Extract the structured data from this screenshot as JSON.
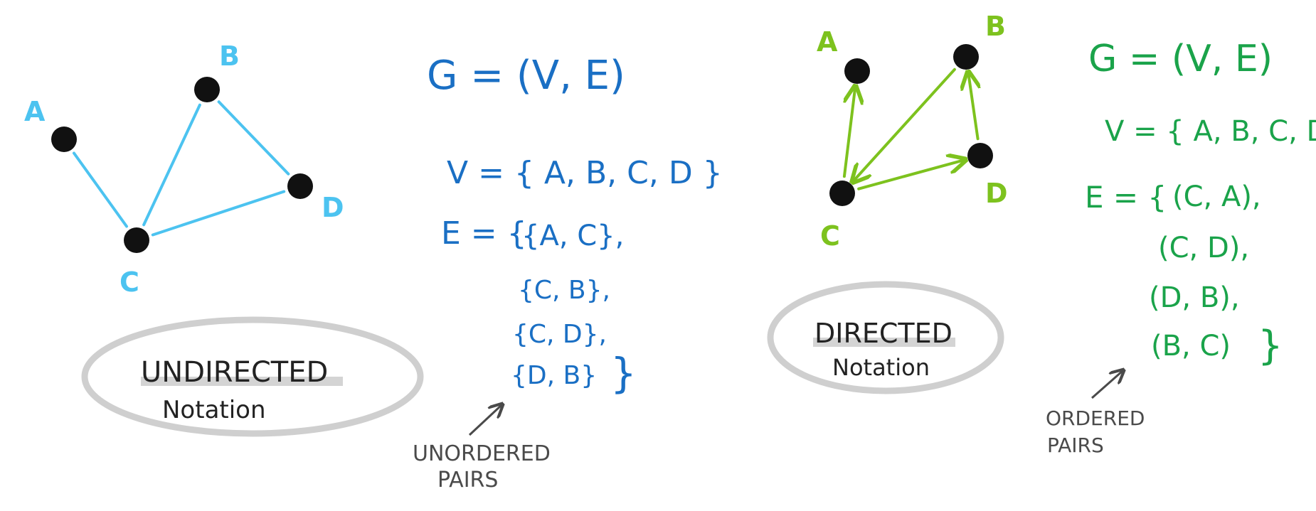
{
  "colors": {
    "undirected_edge": "#4cc3f0",
    "directed_edge": "#7dc21e",
    "undirected_math": "#1a6fc4",
    "directed_math": "#1aa34a",
    "node": "#111111",
    "ellipse": "#cfcfcf",
    "note": "#4a4a4a"
  },
  "undirected": {
    "nodes": [
      {
        "id": "A",
        "label": "A"
      },
      {
        "id": "B",
        "label": "B"
      },
      {
        "id": "C",
        "label": "C"
      },
      {
        "id": "D",
        "label": "D"
      }
    ],
    "edges": [
      [
        "A",
        "C"
      ],
      [
        "C",
        "B"
      ],
      [
        "B",
        "D"
      ],
      [
        "C",
        "D"
      ]
    ],
    "title_line1": "UNDIRECTED",
    "title_line2": "Notation",
    "graph_def": "G = (V, E)",
    "v_def": "V = { A, B, C, D }",
    "e_prefix": "E = {",
    "e_items": [
      "{A, C},",
      "{C, B},",
      "{C, D},",
      "{D, B}"
    ],
    "e_close": "}",
    "note_line1": "UNORDERED",
    "note_line2": "PAIRS"
  },
  "directed": {
    "nodes": [
      {
        "id": "A",
        "label": "A"
      },
      {
        "id": "B",
        "label": "B"
      },
      {
        "id": "C",
        "label": "C"
      },
      {
        "id": "D",
        "label": "D"
      }
    ],
    "edges": [
      [
        "C",
        "A"
      ],
      [
        "C",
        "D"
      ],
      [
        "D",
        "B"
      ],
      [
        "B",
        "C"
      ]
    ],
    "title_line1": "DIRECTED",
    "title_line2": "Notation",
    "graph_def": "G = (V, E)",
    "v_def": "V = { A, B, C, D }",
    "e_prefix": "E = {",
    "e_items": [
      "(C, A),",
      "(C, D),",
      "(D, B),",
      "(B, C)"
    ],
    "e_close": "}",
    "note_line1": "ORDERED",
    "note_line2": "PAIRS"
  }
}
